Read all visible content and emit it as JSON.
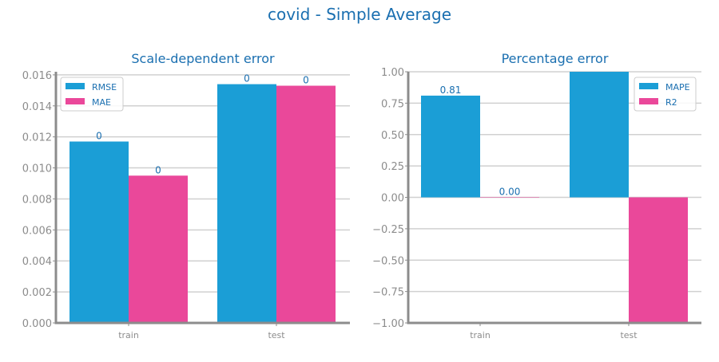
{
  "suptitle": "covid - Simple Average",
  "colors": {
    "title": "#1a6fb0",
    "tick": "#8c8c8c",
    "axis": "#8c8c8c",
    "grid": "#d0d0d0",
    "value_label": "#1a6fb0",
    "series_1": "#1b9ed6",
    "series_2": "#ea489a"
  },
  "chart_data": [
    {
      "type": "bar",
      "title": "Scale-dependent error",
      "categories": [
        "train",
        "test"
      ],
      "series": [
        {
          "name": "RMSE",
          "values": [
            0.0117,
            0.0154
          ],
          "labels": [
            "0",
            "0"
          ]
        },
        {
          "name": "MAE",
          "values": [
            0.0095,
            0.0153
          ],
          "labels": [
            "0",
            "0"
          ]
        }
      ],
      "ylim": [
        0,
        0.0162
      ],
      "yticks": [
        "0.000",
        "0.002",
        "0.004",
        "0.006",
        "0.008",
        "0.010",
        "0.012",
        "0.014",
        "0.016"
      ],
      "ytick_values": [
        0,
        0.002,
        0.004,
        0.006,
        0.008,
        0.01,
        0.012,
        0.014,
        0.016
      ],
      "legend": "top-left",
      "grid": "horizontal"
    },
    {
      "type": "bar",
      "title": "Percentage error",
      "categories": [
        "train",
        "test"
      ],
      "series": [
        {
          "name": "MAPE",
          "values": [
            0.81,
            1.0
          ],
          "labels": [
            "0.81",
            ""
          ]
        },
        {
          "name": "R2",
          "values": [
            0.0,
            -1.0
          ],
          "labels": [
            "0.00",
            ""
          ]
        }
      ],
      "ylim": [
        -1.0,
        1.0
      ],
      "yticks": [
        "1.00",
        "0.75",
        "0.50",
        "0.25",
        "0.00",
        "−0.25",
        "−0.50",
        "−0.75",
        "−1.00"
      ],
      "ytick_values": [
        1.0,
        0.75,
        0.5,
        0.25,
        0.0,
        -0.25,
        -0.5,
        -0.75,
        -1.0
      ],
      "legend": "top-right",
      "grid": "horizontal"
    }
  ]
}
